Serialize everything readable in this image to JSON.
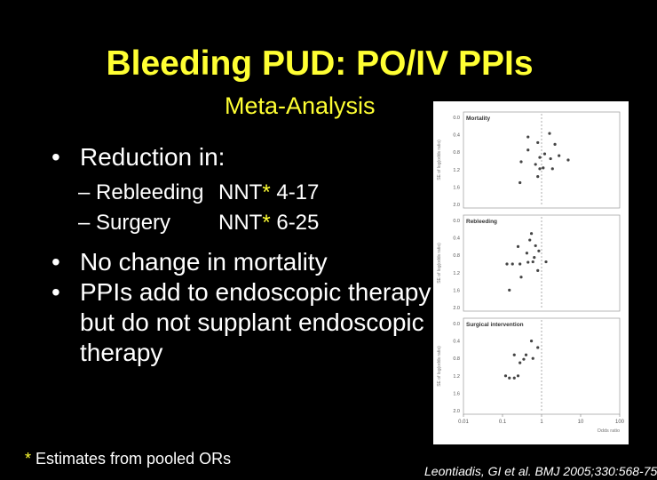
{
  "slide": {
    "title": "Bleeding PUD: PO/IV PPIs",
    "subtitle": "Meta-Analysis",
    "bullets": [
      {
        "text": "Reduction in:"
      },
      {
        "text": "No change in mortality"
      },
      {
        "text": "PPIs add to endoscopic therapy but do not supplant endoscopic therapy"
      }
    ],
    "subbullets": [
      {
        "label": "– Rebleeding",
        "nnt_prefix": "NNT",
        "star": "*",
        "nnt_range": " 4-17"
      },
      {
        "label": "– Surgery",
        "nnt_prefix": "NNT",
        "star": "*",
        "nnt_range": " 6-25"
      }
    ],
    "footnote": {
      "star": "*",
      "text": " Estimates from pooled ORs"
    },
    "citation": "Leontiadis, GI et al. BMJ 2005;330:568-75"
  },
  "chart_data": {
    "type": "scatter",
    "x_axis": {
      "label": "Odds ratio",
      "ticks": [
        "0.01",
        "0.1",
        "1",
        "10",
        "100"
      ],
      "scale": "log",
      "range": [
        0.01,
        100
      ]
    },
    "y_axis": {
      "label": "SE of log(odds ratio)",
      "ticks": [
        "0.0",
        "0.4",
        "0.8",
        "1.2",
        "1.6",
        "2.0"
      ],
      "range": [
        0.0,
        2.0
      ],
      "inverted": true
    },
    "reference_line_x": 1,
    "panels": [
      {
        "title": "Mortality",
        "points": [
          [
            0.45,
            0.45
          ],
          [
            1.6,
            0.37
          ],
          [
            0.8,
            0.58
          ],
          [
            2.2,
            0.62
          ],
          [
            0.45,
            0.75
          ],
          [
            1.2,
            0.84
          ],
          [
            0.9,
            0.92
          ],
          [
            2.8,
            0.88
          ],
          [
            1.7,
            0.95
          ],
          [
            4.8,
            0.98
          ],
          [
            0.3,
            1.02
          ],
          [
            0.7,
            1.08
          ],
          [
            1.1,
            1.16
          ],
          [
            0.9,
            1.18
          ],
          [
            1.9,
            1.18
          ],
          [
            0.28,
            1.5
          ],
          [
            0.8,
            1.36
          ]
        ]
      },
      {
        "title": "Rebleeding",
        "points": [
          [
            0.55,
            0.3
          ],
          [
            0.5,
            0.45
          ],
          [
            0.25,
            0.6
          ],
          [
            0.7,
            0.58
          ],
          [
            0.85,
            0.7
          ],
          [
            0.42,
            0.75
          ],
          [
            0.65,
            0.85
          ],
          [
            1.3,
            0.95
          ],
          [
            0.6,
            0.95
          ],
          [
            0.18,
            1.0
          ],
          [
            0.13,
            1.0
          ],
          [
            0.45,
            0.96
          ],
          [
            0.28,
            1.0
          ],
          [
            0.8,
            1.15
          ],
          [
            0.3,
            1.3
          ],
          [
            0.15,
            1.6
          ]
        ]
      },
      {
        "title": "Surgical intervention",
        "points": [
          [
            0.55,
            0.4
          ],
          [
            0.8,
            0.55
          ],
          [
            0.2,
            0.72
          ],
          [
            0.35,
            0.82
          ],
          [
            0.4,
            0.72
          ],
          [
            0.28,
            0.9
          ],
          [
            0.6,
            0.8
          ],
          [
            0.12,
            1.2
          ],
          [
            0.15,
            1.25
          ],
          [
            0.2,
            1.25
          ],
          [
            0.25,
            1.2
          ]
        ]
      }
    ]
  }
}
